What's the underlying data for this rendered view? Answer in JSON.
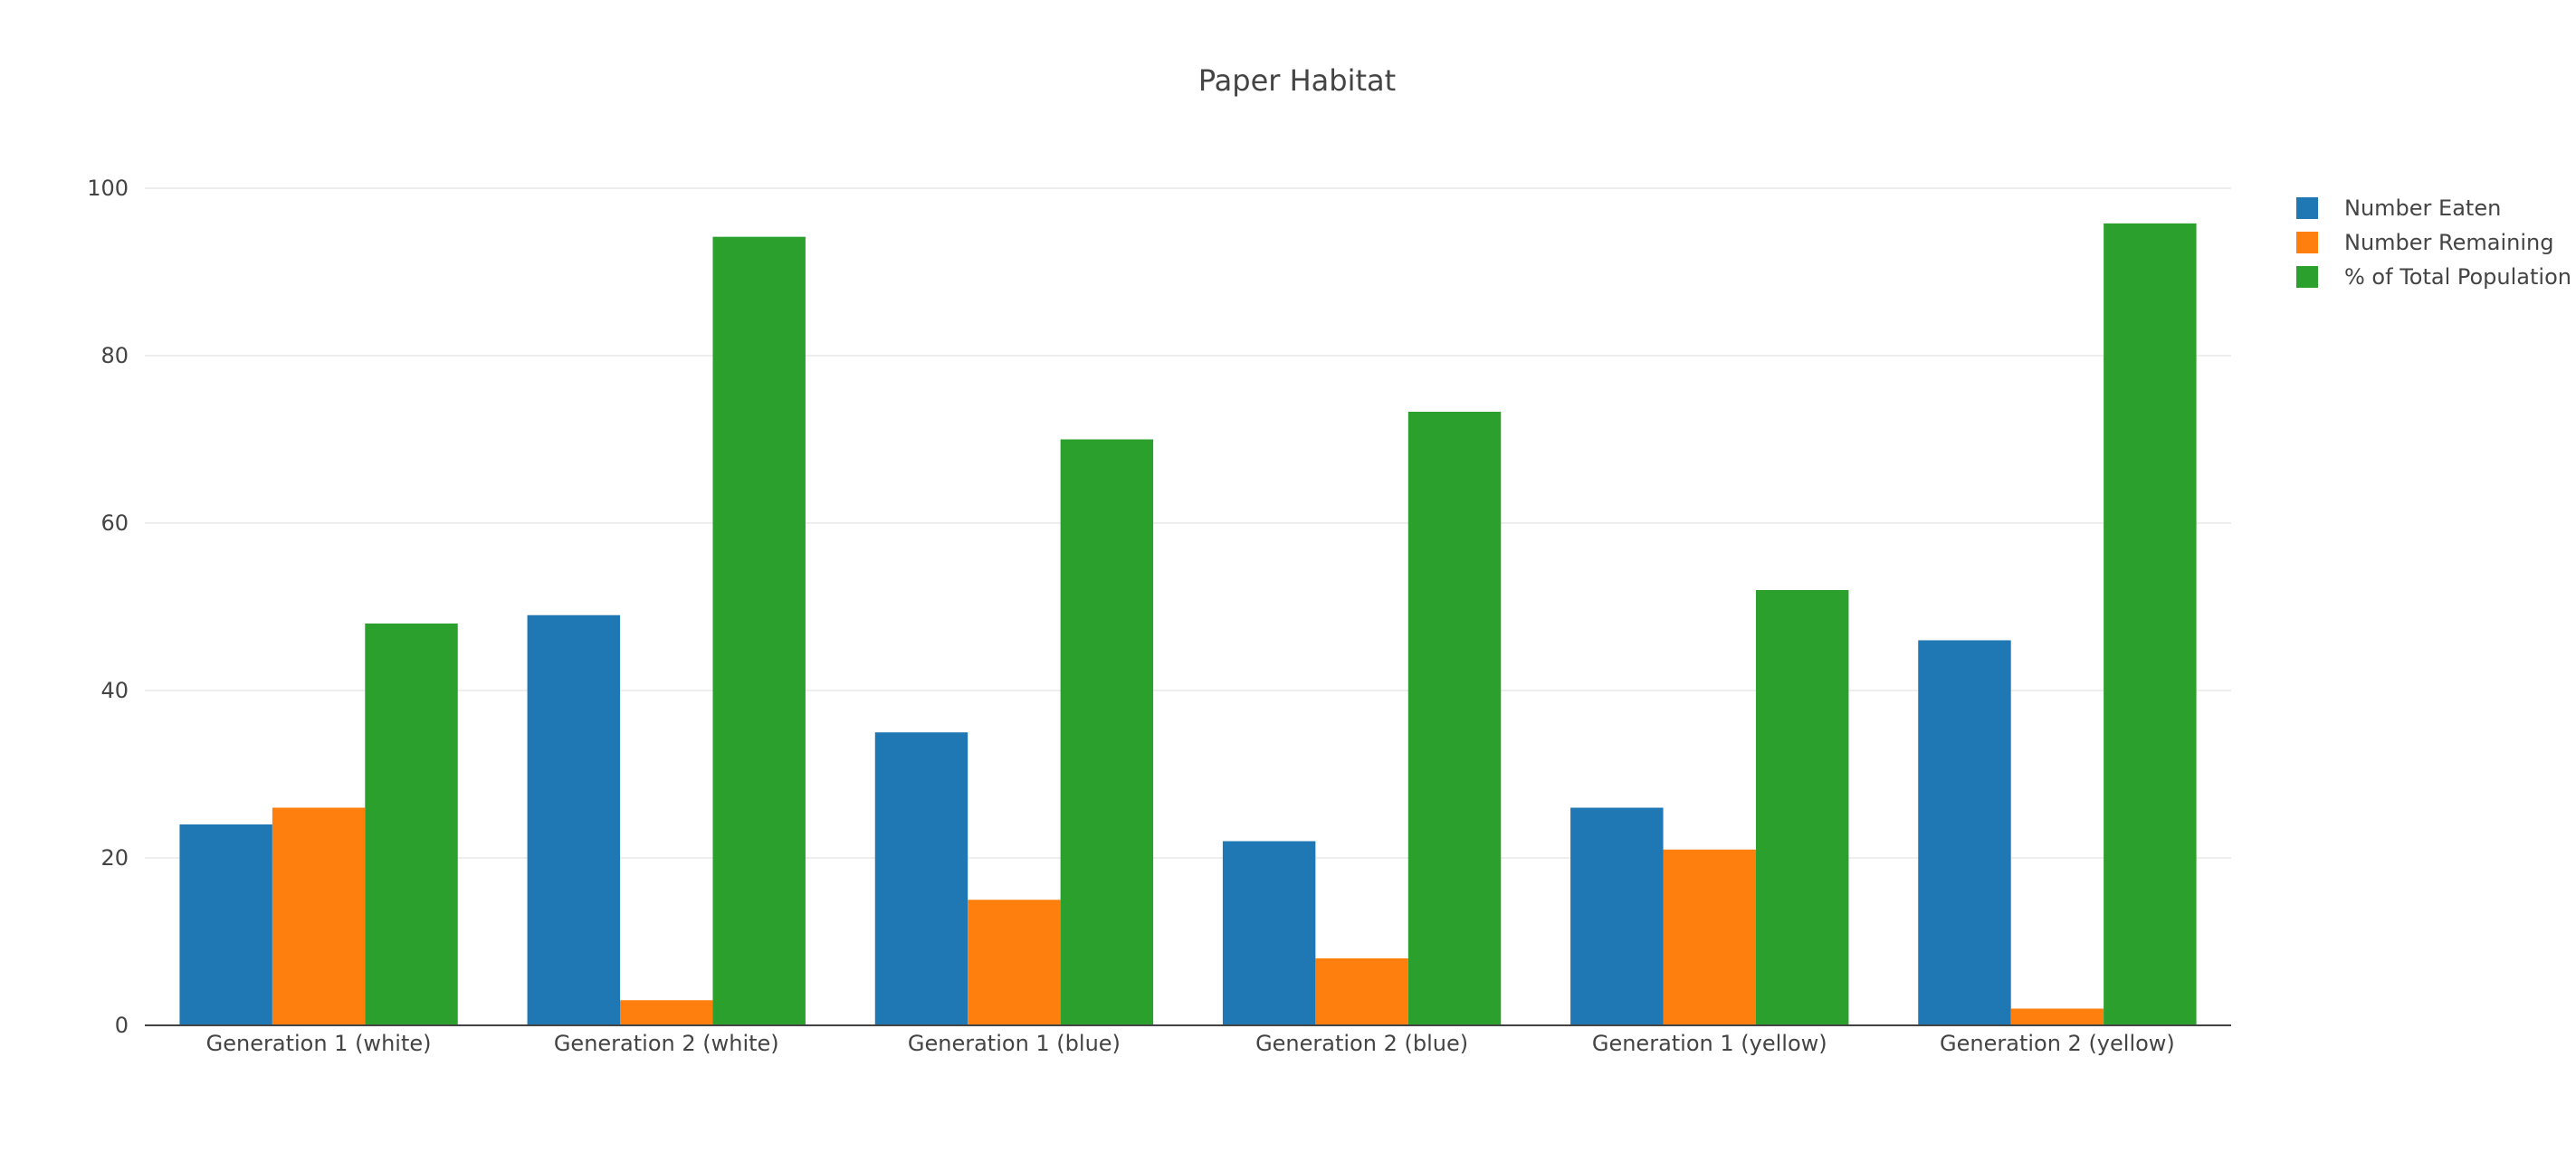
{
  "chart_data": {
    "type": "bar",
    "title": "Paper Habitat",
    "categories": [
      "Generation 1 (white)",
      "Generation 2 (white)",
      "Generation 1 (blue)",
      "Generation 2 (blue)",
      "Generation 1 (yellow)",
      "Generation 2 (yellow)"
    ],
    "series": [
      {
        "name": "Number Eaten",
        "color": "#1f77b4",
        "values": [
          24,
          49,
          35,
          22,
          26,
          46
        ]
      },
      {
        "name": "Number Remaining",
        "color": "#ff7f0e",
        "values": [
          26,
          3,
          15,
          8,
          21,
          2
        ]
      },
      {
        "name": "% of Total Population",
        "color": "#2ca02c",
        "values": [
          48,
          94.2,
          70,
          73.3,
          52,
          95.8
        ]
      }
    ],
    "ylim": [
      0,
      100
    ],
    "yticks": [
      0,
      20,
      40,
      60,
      80,
      100
    ],
    "grid": true,
    "legend_position": "top-right"
  }
}
